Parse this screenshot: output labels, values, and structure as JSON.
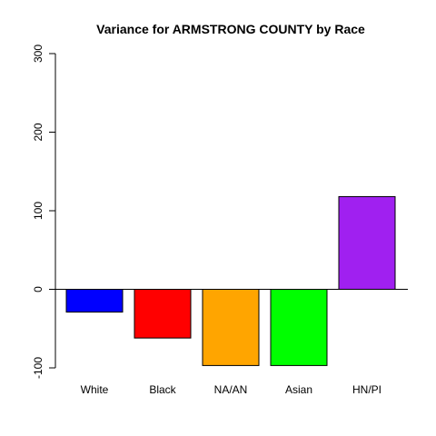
{
  "chart_data": {
    "type": "bar",
    "title": "Variance for ARMSTRONG COUNTY by Race",
    "xlabel": "",
    "ylabel": "",
    "categories": [
      "White",
      "Black",
      "NA/AN",
      "Asian",
      "HN/PI"
    ],
    "values": [
      -29,
      -62,
      -97,
      -97,
      118
    ],
    "colors": [
      "#0000ff",
      "#ff0000",
      "#ffa500",
      "#00ff00",
      "#a020f0"
    ],
    "ylim": [
      -100,
      300
    ],
    "yticks": [
      -100,
      0,
      100,
      200,
      300
    ],
    "ytick_labels": [
      "-100",
      "0",
      "100",
      "200",
      "300"
    ],
    "baseline": 0,
    "grid": false,
    "legend": "none"
  }
}
